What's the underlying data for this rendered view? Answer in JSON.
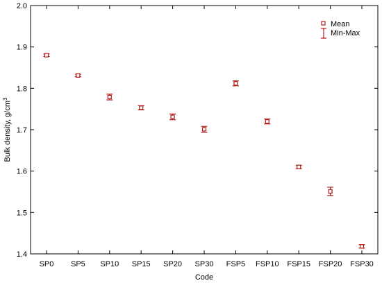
{
  "chart_data": {
    "type": "scatter",
    "title": "",
    "xlabel": "Code",
    "ylabel": "Bulk density, g/cm",
    "ylabel_sup": "3",
    "ylim": [
      1.4,
      2.0
    ],
    "yticks": [
      "1.4",
      "1.5",
      "1.6",
      "1.7",
      "1.8",
      "1.9",
      "2.0"
    ],
    "categories": [
      "SP0",
      "SP5",
      "SP10",
      "SP15",
      "SP20",
      "SP30",
      "FSP5",
      "FSP10",
      "FSP15",
      "FSP20",
      "FSP30"
    ],
    "series": [
      {
        "name": "Mean",
        "values": [
          1.88,
          1.831,
          1.779,
          1.753,
          1.731,
          1.701,
          1.812,
          1.72,
          1.61,
          1.551,
          1.418
        ],
        "min": [
          1.877,
          1.828,
          1.772,
          1.748,
          1.724,
          1.694,
          1.806,
          1.714,
          1.606,
          1.541,
          1.414
        ],
        "max": [
          1.883,
          1.834,
          1.786,
          1.758,
          1.738,
          1.708,
          1.818,
          1.726,
          1.614,
          1.561,
          1.422
        ]
      }
    ],
    "legend": {
      "position": "top-right",
      "entries": [
        {
          "label": "Mean",
          "marker": "square"
        },
        {
          "label": "Min-Max",
          "marker": "whisker"
        }
      ]
    },
    "grid": false,
    "color": "#b01a1a"
  }
}
